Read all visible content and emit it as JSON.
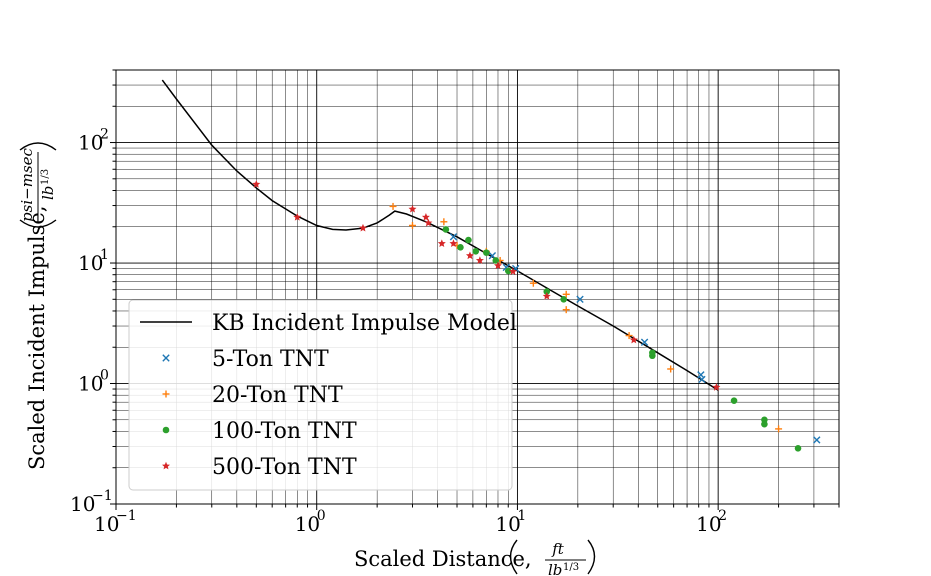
{
  "chart_data": {
    "type": "scatter",
    "xscale": "log",
    "yscale": "log",
    "xlim": [
      0.1,
      400
    ],
    "ylim": [
      0.1,
      400
    ],
    "grid": true,
    "legend_position": "lower-left",
    "x_ticks": [
      {
        "base": "10",
        "exp": "−1",
        "value": 0.1
      },
      {
        "base": "10",
        "exp": "0",
        "value": 1
      },
      {
        "base": "10",
        "exp": "1",
        "value": 10
      },
      {
        "base": "10",
        "exp": "2",
        "value": 100
      }
    ],
    "y_ticks": [
      {
        "base": "10",
        "exp": "−1",
        "value": 0.1
      },
      {
        "base": "10",
        "exp": "0",
        "value": 1
      },
      {
        "base": "10",
        "exp": "1",
        "value": 10
      },
      {
        "base": "10",
        "exp": "2",
        "value": 100
      }
    ],
    "xlabel": {
      "text": "Scaled Distance,",
      "unit_num": "ft",
      "unit_den": "lb",
      "unit_den_exp": "1/3"
    },
    "ylabel": {
      "text": "Scaled Incident Impulse,",
      "unit_num": "psi−msec",
      "unit_den": "lb",
      "unit_den_exp": "1/3"
    },
    "line": {
      "name": "KB Incident Impulse Model",
      "color": "#000000",
      "points": [
        [
          0.17,
          330
        ],
        [
          0.2,
          230
        ],
        [
          0.3,
          95
        ],
        [
          0.4,
          58
        ],
        [
          0.5,
          42
        ],
        [
          0.6,
          33
        ],
        [
          0.8,
          24.5
        ],
        [
          1.0,
          20.5
        ],
        [
          1.2,
          19
        ],
        [
          1.4,
          18.8
        ],
        [
          1.7,
          19.5
        ],
        [
          2.0,
          21.5
        ],
        [
          2.3,
          25
        ],
        [
          2.45,
          27
        ],
        [
          2.8,
          25.5
        ],
        [
          3.5,
          22
        ],
        [
          5,
          16.5
        ],
        [
          7,
          12
        ],
        [
          10,
          8.6
        ],
        [
          15,
          5.8
        ],
        [
          20,
          4.4
        ],
        [
          30,
          3.0
        ],
        [
          50,
          1.8
        ],
        [
          70,
          1.28
        ],
        [
          100,
          0.88
        ]
      ]
    },
    "series": [
      {
        "name": "5-Ton TNT",
        "marker": "x",
        "color": "#1f77b4",
        "points": [
          [
            4.8,
            16.5
          ],
          [
            7.5,
            11.5
          ],
          [
            8.8,
            9.2
          ],
          [
            9.8,
            9.0
          ],
          [
            20.5,
            5.0
          ],
          [
            43,
            2.2
          ],
          [
            82,
            1.18
          ],
          [
            83,
            1.08
          ],
          [
            310,
            0.34
          ]
        ]
      },
      {
        "name": "20-Ton TNT",
        "marker": "+",
        "color": "#ff7f0e",
        "points": [
          [
            2.4,
            29.5
          ],
          [
            3.0,
            20.5
          ],
          [
            4.3,
            22
          ],
          [
            5.0,
            14.0
          ],
          [
            7.0,
            12.5
          ],
          [
            8.2,
            10.5
          ],
          [
            12,
            6.8
          ],
          [
            17.5,
            5.5
          ],
          [
            17.5,
            4.1
          ],
          [
            36,
            2.5
          ],
          [
            58,
            1.32
          ],
          [
            200,
            0.42
          ]
        ]
      },
      {
        "name": "100-Ton TNT",
        "marker": "o",
        "color": "#2ca02c",
        "points": [
          [
            4.4,
            19
          ],
          [
            5.2,
            13.5
          ],
          [
            5.7,
            15.5
          ],
          [
            6.2,
            12.5
          ],
          [
            7.0,
            12.2
          ],
          [
            7.8,
            10.5
          ],
          [
            9.0,
            8.6
          ],
          [
            14,
            5.8
          ],
          [
            17,
            5.0
          ],
          [
            47,
            1.8
          ],
          [
            47,
            1.7
          ],
          [
            120,
            0.72
          ],
          [
            170,
            0.5
          ],
          [
            170,
            0.46
          ],
          [
            250,
            0.29
          ]
        ]
      },
      {
        "name": "500-Ton TNT",
        "marker": "*",
        "color": "#d62728",
        "points": [
          [
            0.5,
            45
          ],
          [
            0.8,
            24
          ],
          [
            1.7,
            19.5
          ],
          [
            3.0,
            28
          ],
          [
            3.5,
            24
          ],
          [
            3.6,
            21.5
          ],
          [
            4.2,
            14.5
          ],
          [
            4.8,
            14.5
          ],
          [
            5.8,
            11.5
          ],
          [
            6.5,
            10.5
          ],
          [
            8.0,
            9.5
          ],
          [
            9.5,
            8.5
          ],
          [
            14,
            5.3
          ],
          [
            38,
            2.3
          ],
          [
            98,
            0.93
          ]
        ]
      }
    ]
  }
}
